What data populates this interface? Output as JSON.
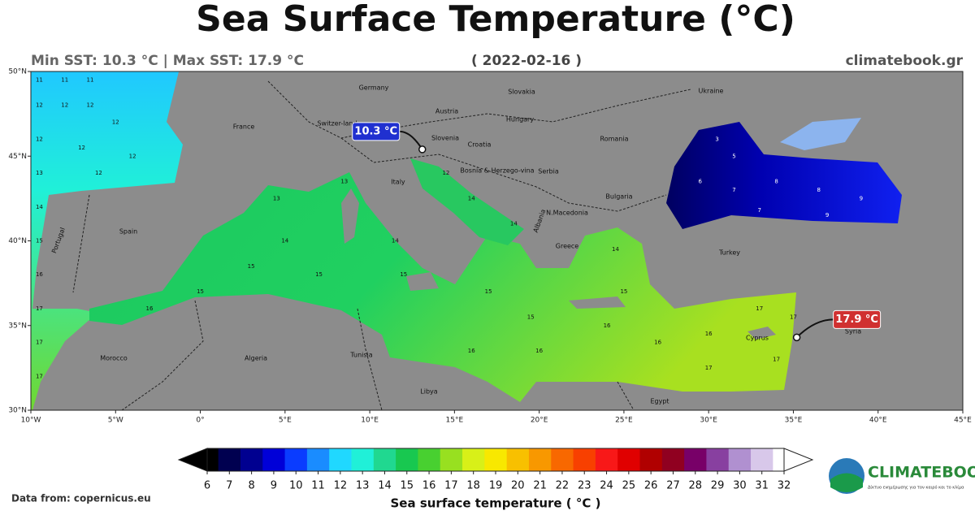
{
  "title": "Sea Surface Temperature (°C)",
  "summary": "Min SST: 10.3 °C | Max SST: 17.9 °C",
  "date": "( 2022-02-16 )",
  "site": "climatebook.gr",
  "source": "Data from: copernicus.eu",
  "logo": {
    "name": "CLIMATEBOOK",
    "tagline": "Δίκτυο ενημέρωσης για τον καιρό και το κλίμα"
  },
  "map": {
    "xlim": [
      -10,
      45
    ],
    "ylim": [
      30,
      50
    ],
    "xticks": [
      {
        "value": -10,
        "label": "10°W"
      },
      {
        "value": -5,
        "label": "5°W"
      },
      {
        "value": 0,
        "label": "0°"
      },
      {
        "value": 5,
        "label": "5°E"
      },
      {
        "value": 10,
        "label": "10°E"
      },
      {
        "value": 15,
        "label": "15°E"
      },
      {
        "value": 20,
        "label": "20°E"
      },
      {
        "value": 25,
        "label": "25°E"
      },
      {
        "value": 30,
        "label": "30°E"
      },
      {
        "value": 35,
        "label": "35°E"
      },
      {
        "value": 40,
        "label": "40°E"
      },
      {
        "value": 45,
        "label": "45°E"
      }
    ],
    "yticks": [
      {
        "value": 30,
        "label": "30°N"
      },
      {
        "value": 35,
        "label": "35°N"
      },
      {
        "value": 40,
        "label": "40°N"
      },
      {
        "value": 45,
        "label": "45°N"
      },
      {
        "value": 50,
        "label": "50°N"
      }
    ],
    "countries": [
      "Germany",
      "Austria",
      "Slovakia",
      "Ukraine",
      "France",
      "Switzer-land",
      "Hungary",
      "Slovenia",
      "Croatia",
      "Romania",
      "Bosnia & Herzego-vina",
      "Serbia",
      "Italy",
      "Bulgaria",
      "N.Macedonia",
      "Albania",
      "Spain",
      "Portugal",
      "Greece",
      "Turkey",
      "Cyprus",
      "Syria",
      "Morocco",
      "Algeria",
      "Tunisia",
      "Libya",
      "Egypt"
    ],
    "sst_labels": [
      {
        "lon": -9.5,
        "lat": 49.5,
        "value": 11
      },
      {
        "lon": -8,
        "lat": 49.5,
        "value": 11
      },
      {
        "lon": -6.5,
        "lat": 49.5,
        "value": 11
      },
      {
        "lon": -9.5,
        "lat": 48,
        "value": 12
      },
      {
        "lon": -8,
        "lat": 48,
        "value": 12
      },
      {
        "lon": -6.5,
        "lat": 48,
        "value": 12
      },
      {
        "lon": -5,
        "lat": 47,
        "value": 12
      },
      {
        "lon": -9.5,
        "lat": 46,
        "value": 12
      },
      {
        "lon": -7,
        "lat": 45.5,
        "value": 12
      },
      {
        "lon": -4,
        "lat": 45,
        "value": 12
      },
      {
        "lon": -9.5,
        "lat": 44,
        "value": 13
      },
      {
        "lon": -6,
        "lat": 44,
        "value": 12
      },
      {
        "lon": -9.5,
        "lat": 42,
        "value": 14
      },
      {
        "lon": -9.5,
        "lat": 40,
        "value": 15
      },
      {
        "lon": -9.5,
        "lat": 38,
        "value": 16
      },
      {
        "lon": -9.5,
        "lat": 36,
        "value": 17
      },
      {
        "lon": -9.5,
        "lat": 34,
        "value": 17
      },
      {
        "lon": -9.5,
        "lat": 32,
        "value": 17
      },
      {
        "lon": -3,
        "lat": 36,
        "value": 16
      },
      {
        "lon": 0,
        "lat": 37,
        "value": 15
      },
      {
        "lon": 3,
        "lat": 38.5,
        "value": 15
      },
      {
        "lon": 5,
        "lat": 40,
        "value": 14
      },
      {
        "lon": 4.5,
        "lat": 42.5,
        "value": 13
      },
      {
        "lon": 8.5,
        "lat": 43.5,
        "value": 13
      },
      {
        "lon": 7,
        "lat": 38,
        "value": 15
      },
      {
        "lon": 11.5,
        "lat": 40,
        "value": 14
      },
      {
        "lon": 12,
        "lat": 38,
        "value": 15
      },
      {
        "lon": 14.5,
        "lat": 44,
        "value": 12
      },
      {
        "lon": 16,
        "lat": 42.5,
        "value": 14
      },
      {
        "lon": 18.5,
        "lat": 41,
        "value": 14
      },
      {
        "lon": 17,
        "lat": 37,
        "value": 15
      },
      {
        "lon": 19.5,
        "lat": 35.5,
        "value": 15
      },
      {
        "lon": 16,
        "lat": 33.5,
        "value": 16
      },
      {
        "lon": 20,
        "lat": 33.5,
        "value": 16
      },
      {
        "lon": 24,
        "lat": 35,
        "value": 16
      },
      {
        "lon": 25,
        "lat": 37,
        "value": 15
      },
      {
        "lon": 24.5,
        "lat": 39.5,
        "value": 14
      },
      {
        "lon": 27,
        "lat": 34,
        "value": 16
      },
      {
        "lon": 30,
        "lat": 32.5,
        "value": 17
      },
      {
        "lon": 30,
        "lat": 34.5,
        "value": 16
      },
      {
        "lon": 34,
        "lat": 33,
        "value": 17
      },
      {
        "lon": 33,
        "lat": 36,
        "value": 17
      },
      {
        "lon": 35,
        "lat": 35.5,
        "value": 17
      },
      {
        "lon": 30.5,
        "lat": 46,
        "value": 3
      },
      {
        "lon": 31.5,
        "lat": 45,
        "value": 5
      },
      {
        "lon": 29.5,
        "lat": 43.5,
        "value": 6
      },
      {
        "lon": 31.5,
        "lat": 43,
        "value": 7
      },
      {
        "lon": 34,
        "lat": 43.5,
        "value": 8
      },
      {
        "lon": 36.5,
        "lat": 43,
        "value": 8
      },
      {
        "lon": 39,
        "lat": 42.5,
        "value": 9
      },
      {
        "lon": 33,
        "lat": 41.8,
        "value": 7
      },
      {
        "lon": 37,
        "lat": 41.5,
        "value": 9
      }
    ],
    "min_marker": {
      "lon": 13.1,
      "lat": 45.4,
      "value": 10.3,
      "label": "10.3 °C"
    },
    "max_marker": {
      "lon": 35.2,
      "lat": 34.3,
      "value": 17.9,
      "label": "17.9 °C"
    }
  },
  "colorbar": {
    "label": "Sea surface temperature ( °C )",
    "ticks": [
      6,
      7,
      8,
      9,
      10,
      11,
      12,
      13,
      14,
      15,
      16,
      17,
      18,
      19,
      20,
      21,
      22,
      23,
      24,
      25,
      26,
      27,
      28,
      29,
      30,
      31,
      32
    ],
    "colors": [
      "#000000",
      "#000050",
      "#000090",
      "#0000d8",
      "#0a3cff",
      "#1a8cff",
      "#20d8ff",
      "#20f0d8",
      "#20d890",
      "#18c850",
      "#48d030",
      "#98e020",
      "#d8f018",
      "#f8e800",
      "#f8c000",
      "#f89800",
      "#f86800",
      "#f84000",
      "#f81818",
      "#e00000",
      "#b00000",
      "#900020",
      "#780068",
      "#8840a0",
      "#b090d0",
      "#d8c8ea",
      "#ffffff"
    ]
  }
}
